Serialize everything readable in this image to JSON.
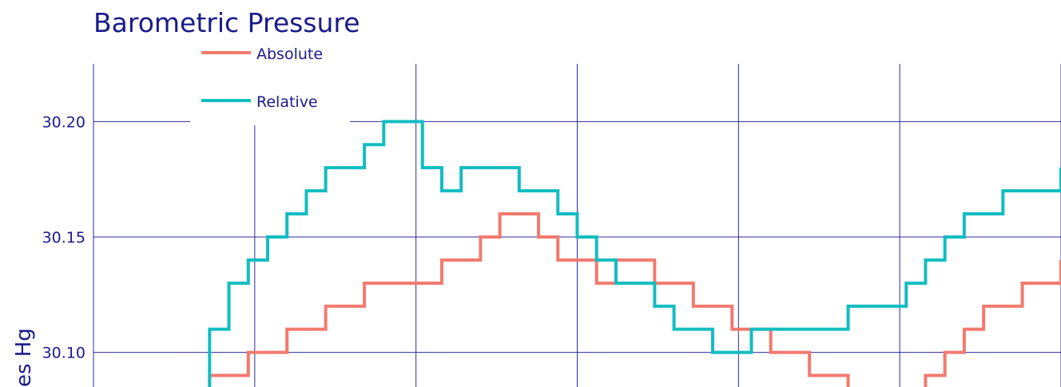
{
  "chart_data": {
    "type": "line",
    "title": "Barometric Pressure",
    "ylabel": "es Hg",
    "xlabel": "",
    "ylim": [
      30.085,
      30.225
    ],
    "yticks": [
      "30.20",
      "30.15",
      "30.10"
    ],
    "ytick_values": [
      30.2,
      30.15,
      30.1
    ],
    "x_gridlines": 6,
    "grid": true,
    "legend": "top-left",
    "colors": {
      "absolute": "#f27a6e",
      "relative": "#12bdc1",
      "grid": "#2a2aa0",
      "text": "#1a1a8c"
    },
    "x": [
      0,
      2,
      4,
      6,
      8,
      10,
      12,
      14,
      16,
      18,
      20,
      22,
      24,
      26,
      28,
      30,
      32,
      34,
      36,
      38,
      40,
      42,
      44,
      46,
      48,
      50,
      52,
      54,
      56,
      58,
      60,
      62,
      64,
      66,
      68,
      70,
      72,
      74,
      76,
      78,
      80,
      82,
      84,
      86,
      88,
      90,
      92,
      94,
      96,
      98,
      100
    ],
    "series": [
      {
        "name": "Absolute",
        "values": [
          30.08,
          30.08,
          30.08,
          30.08,
          30.08,
          30.08,
          30.09,
          30.09,
          30.1,
          30.1,
          30.11,
          30.11,
          30.12,
          30.12,
          30.13,
          30.13,
          30.13,
          30.13,
          30.14,
          30.14,
          30.15,
          30.16,
          30.16,
          30.15,
          30.14,
          30.14,
          30.13,
          30.14,
          30.14,
          30.13,
          30.13,
          30.12,
          30.12,
          30.11,
          30.11,
          30.1,
          30.1,
          30.09,
          30.09,
          30.08,
          30.08,
          30.08,
          30.08,
          30.09,
          30.1,
          30.11,
          30.12,
          30.12,
          30.13,
          30.13,
          30.14
        ]
      },
      {
        "name": "Relative",
        "values": [
          30.08,
          30.08,
          30.08,
          30.08,
          30.08,
          30.08,
          30.11,
          30.13,
          30.14,
          30.15,
          30.16,
          30.17,
          30.18,
          30.18,
          30.19,
          30.2,
          30.2,
          30.18,
          30.17,
          30.18,
          30.18,
          30.18,
          30.17,
          30.17,
          30.16,
          30.15,
          30.14,
          30.13,
          30.13,
          30.12,
          30.11,
          30.11,
          30.1,
          30.1,
          30.11,
          30.11,
          30.11,
          30.11,
          30.11,
          30.12,
          30.12,
          30.12,
          30.13,
          30.14,
          30.15,
          30.16,
          30.16,
          30.17,
          30.17,
          30.17,
          30.18
        ]
      }
    ]
  }
}
